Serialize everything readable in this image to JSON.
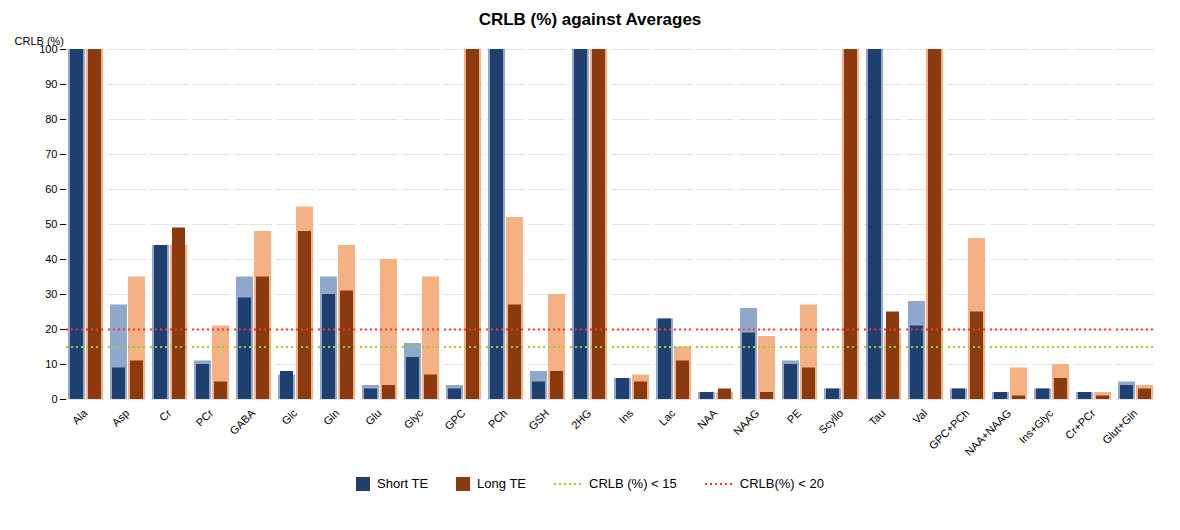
{
  "chart_data": {
    "type": "bar",
    "title": "CRLB (%) against Averages",
    "ylabel": "CRLB (%)",
    "categories": [
      "Ala",
      "Asp",
      "Cr",
      "PCr",
      "GABA",
      "Glc",
      "Gln",
      "Glu",
      "Glyc",
      "GPC",
      "PCh",
      "GSH",
      "2HG",
      "Ins",
      "Lac",
      "NAA",
      "NAAG",
      "PE",
      "Scyllo",
      "Tau",
      "Val",
      "GPC+PCh",
      "NAA+NAAG",
      "Ins+Glyc",
      "Cr+PCr",
      "Glut+Gln"
    ],
    "series": [
      {
        "name": "Short TE",
        "color": "#1F3F6E",
        "values": [
          100,
          9,
          44,
          10,
          29,
          8,
          30,
          3,
          12,
          3,
          100,
          5,
          100,
          6,
          23,
          2,
          19,
          10,
          3,
          100,
          21,
          3,
          2,
          3,
          2,
          4
        ],
        "light_color": "#8FA8CC",
        "light_values": [
          100,
          27,
          44,
          11,
          35,
          7,
          35,
          4,
          16,
          4,
          100,
          8,
          100,
          6,
          23,
          2,
          26,
          11,
          3,
          100,
          28,
          3,
          2,
          3,
          2,
          5
        ]
      },
      {
        "name": "Long TE",
        "color": "#8B3A10",
        "values": [
          100,
          11,
          49,
          5,
          35,
          48,
          31,
          4,
          7,
          100,
          27,
          8,
          100,
          5,
          11,
          3,
          2,
          9,
          100,
          25,
          100,
          25,
          1,
          6,
          1,
          3
        ],
        "light_color": "#F4B183",
        "light_values": [
          100,
          35,
          44,
          21,
          48,
          55,
          44,
          40,
          35,
          100,
          52,
          30,
          100,
          7,
          15,
          2,
          18,
          27,
          100,
          19,
          100,
          46,
          9,
          10,
          2,
          4
        ]
      }
    ],
    "reference_lines": [
      {
        "name": "CRLB (%) < 15",
        "y": 15,
        "color": "#9ACD32",
        "line_style": "dotted"
      },
      {
        "name": "CRLB(%) < 20",
        "y": 20,
        "color": "#FF3333",
        "line_style": "dotted"
      }
    ],
    "ylim": [
      0,
      100
    ],
    "yticks": [
      0,
      10,
      20,
      30,
      40,
      50,
      60,
      70,
      80,
      90,
      100
    ],
    "grid": true,
    "legend": "bottom"
  }
}
